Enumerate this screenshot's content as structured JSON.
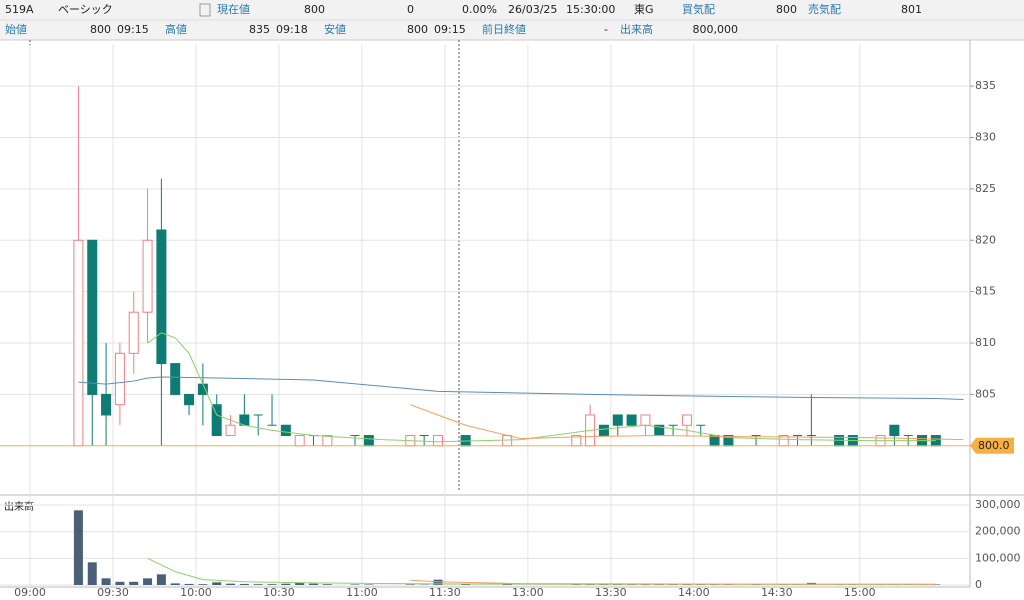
{
  "header": {
    "row1": [
      "519A",
      "ベーシック",
      "現在値",
      "800",
      "0",
      "0.00%",
      "26/03/25",
      "15:30:00",
      "東G",
      "買気配",
      "800",
      "売気配",
      "801"
    ],
    "row2": [
      "始値",
      "800",
      "09:15",
      "高値",
      "835",
      "09:18",
      "安値",
      "800",
      "09:15",
      "前日終値",
      "-",
      "出来高",
      "800,000"
    ]
  },
  "chart_data": {
    "type": "candlestick",
    "xlim": [
      -2.17,
      67.97
    ],
    "xticks": [
      {
        "value": 0,
        "label": "09:00"
      },
      {
        "value": 6,
        "label": "09:30"
      },
      {
        "value": 12,
        "label": "10:00"
      },
      {
        "value": 18,
        "label": "10:30"
      },
      {
        "value": 24,
        "label": "11:00"
      },
      {
        "value": 30,
        "label": "11:30"
      },
      {
        "value": 36,
        "label": "13:00"
      },
      {
        "value": 42,
        "label": "13:30"
      },
      {
        "value": 48,
        "label": "14:00"
      },
      {
        "value": 54,
        "label": "14:30"
      },
      {
        "value": 60,
        "label": "15:00"
      }
    ],
    "ylim": [
      795.7,
      839.0
    ],
    "yticks": [
      805,
      810,
      815,
      820,
      825,
      830,
      835
    ],
    "last_price": {
      "value": 800,
      "label": "800.0"
    },
    "last_price_color": "#f5b041",
    "up_color": "#f08080",
    "down_color": "#0e7c72",
    "volume_color": "#4a6078",
    "grid": true,
    "ohlc": {
      "x": [
        3.5,
        4.5,
        5.5,
        6.5,
        7.5,
        8.5,
        9.5,
        10.5,
        11.5,
        12.5,
        13.5,
        14.5,
        15.5,
        16.5,
        17.5,
        18.5,
        19.5,
        20.5,
        21.5,
        23.5,
        24.5,
        27.5,
        28.5,
        29.5,
        31.5,
        34.5,
        39.5,
        40.5,
        41.5,
        42.5,
        43.5,
        44.5,
        45.5,
        46.5,
        47.5,
        48.5,
        49.5,
        50.5,
        52.5,
        54.5,
        55.5,
        56.5,
        58.5,
        59.5,
        61.5,
        62.5,
        63.5,
        64.5,
        65.5
      ],
      "open": [
        800,
        820,
        805,
        804,
        809,
        813,
        821,
        808,
        805,
        806,
        804,
        801,
        803,
        803,
        802,
        802,
        800,
        801,
        800,
        801,
        801,
        800,
        801,
        800,
        801,
        800,
        800,
        800,
        802,
        803,
        803,
        802,
        802,
        802,
        802,
        802,
        801,
        801,
        801,
        800,
        801,
        801,
        801,
        801,
        800,
        802,
        801,
        801,
        801
      ],
      "high": [
        835,
        820,
        810,
        810,
        815,
        825,
        826,
        808,
        805,
        808,
        805,
        803,
        805,
        803,
        805,
        802,
        801,
        801,
        801,
        801,
        801,
        801,
        801,
        801,
        801,
        801,
        801,
        804,
        802,
        803,
        803,
        803,
        802,
        802,
        803,
        802,
        801,
        801,
        801,
        801,
        801,
        805,
        801,
        801,
        801,
        802,
        801,
        801,
        801
      ],
      "low": [
        800,
        800,
        800,
        802,
        807,
        810,
        800,
        805,
        803,
        802,
        801,
        801,
        802,
        801,
        802,
        801,
        800,
        800,
        800,
        800,
        800,
        800,
        800,
        800,
        800,
        800,
        800,
        800,
        801,
        801,
        802,
        801,
        801,
        801,
        801,
        801,
        800,
        800,
        800,
        800,
        800,
        800,
        800,
        800,
        800,
        800,
        800,
        800,
        800
      ],
      "close": [
        820,
        805,
        803,
        809,
        813,
        820,
        808,
        805,
        804,
        805,
        801,
        802,
        802,
        803,
        802,
        801,
        801,
        801,
        801,
        801,
        800,
        801,
        801,
        801,
        800,
        801,
        801,
        803,
        801,
        802,
        802,
        803,
        801,
        802,
        803,
        802,
        800,
        800,
        801,
        801,
        801,
        801,
        800,
        800,
        801,
        801,
        801,
        800,
        800
      ],
      "volume": [
        280000,
        85000,
        25000,
        12000,
        12000,
        25000,
        40000,
        6000,
        4000,
        3000,
        10000,
        5000,
        4000,
        3000,
        3000,
        5000,
        8000,
        5000,
        3000,
        2000,
        2000,
        2000,
        1000,
        20000,
        3000,
        2000,
        2000,
        4000,
        2000,
        3000,
        2000,
        2000,
        2000,
        2000,
        2000,
        2000,
        2000,
        2000,
        2000,
        2000,
        2000,
        8000,
        2000,
        2000,
        2000,
        2000,
        2000,
        2000,
        2000
      ]
    },
    "lines": [
      {
        "color": "#5b8db8",
        "x": [
          3.5,
          5.5,
          7.5,
          8.5,
          9.5,
          13.5,
          20.5,
          29.5,
          40.5,
          50.5,
          56.5,
          65.5,
          67.5
        ],
        "values": [
          806.2,
          806.0,
          806.3,
          806.6,
          806.7,
          806.6,
          806.4,
          805.3,
          805.0,
          804.8,
          804.7,
          804.6,
          804.5
        ]
      },
      {
        "color": "#8fd16a",
        "x": [
          8.5,
          9.5,
          10.5,
          11.5,
          12.5,
          13.5,
          15.5,
          17.5,
          20.5,
          25.5,
          29.5,
          35.5,
          40.5,
          44.5,
          47.5,
          50.5,
          55.5,
          60.5,
          65.5
        ],
        "values": [
          810,
          811,
          810.5,
          809,
          806,
          803,
          802,
          801.5,
          801,
          800.6,
          800.4,
          800.6,
          801.5,
          802,
          801.5,
          800.8,
          800.6,
          800.5,
          800.5
        ]
      },
      {
        "color": "#f0a060",
        "x": [
          27.5,
          29.5,
          31.5,
          35.5,
          40.5,
          45.5,
          50.5,
          60.5,
          67.5
        ],
        "values": [
          804,
          803,
          802,
          800.7,
          800.9,
          801,
          800.9,
          800.8,
          800.6
        ]
      }
    ],
    "volume_label": "出来高",
    "volume_ylim": [
      -7500,
      330000
    ],
    "volume_ticks": [
      0,
      {
        "value": 100000,
        "label": "100,000"
      },
      {
        "value": 200000,
        "label": "200,000"
      },
      {
        "value": 300000,
        "label": "300,000"
      }
    ],
    "volume_lines": [
      {
        "color": "#8fd16a",
        "x": [
          8.5,
          10.5,
          12.5,
          15.5,
          20.5,
          29.5,
          40.5,
          55.5,
          65.5
        ],
        "values": [
          100000,
          50000,
          20000,
          12000,
          8000,
          4000,
          3000,
          2500,
          2500
        ]
      },
      {
        "color": "#f0a060",
        "x": [
          27.5,
          29.5,
          35.5,
          50.5,
          65.5
        ],
        "values": [
          18000,
          12000,
          5000,
          3500,
          3000
        ]
      }
    ]
  }
}
